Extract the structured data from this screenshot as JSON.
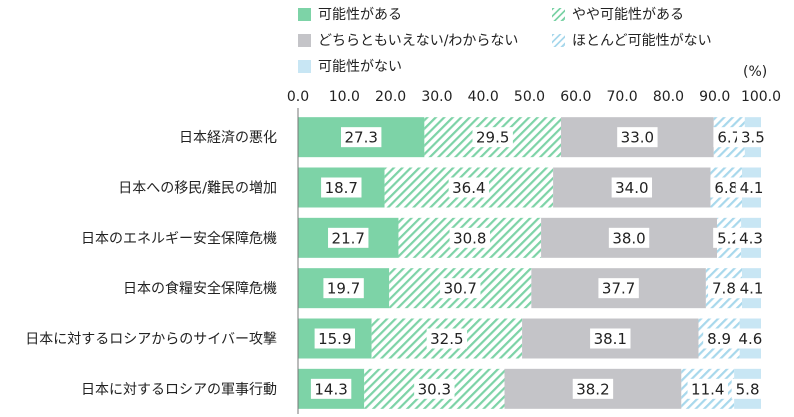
{
  "chart_data": {
    "type": "bar",
    "orientation": "horizontal",
    "stacked": true,
    "unit": "(%)",
    "xlim": [
      0,
      100
    ],
    "x_ticks": [
      "0.0",
      "10.0",
      "20.0",
      "30.0",
      "40.0",
      "50.0",
      "60.0",
      "70.0",
      "80.0",
      "90.0",
      "100.0"
    ],
    "categories": [
      "日本経済の悪化",
      "日本への移民/難民の増加",
      "日本のエネルギー安全保障危機",
      "日本の食糧安全保障危機",
      "日本に対するロシアからのサイバー攻撃",
      "日本に対するロシアの軍事行動"
    ],
    "series": [
      {
        "name": "可能性がある",
        "key": "possible",
        "color": "#7dd3a7",
        "pattern": "solid",
        "values": [
          27.3,
          18.7,
          21.7,
          19.7,
          15.9,
          14.3
        ]
      },
      {
        "name": "やや可能性がある",
        "key": "somewhat",
        "color": "#7dd3a7",
        "pattern": "hatch",
        "values": [
          29.5,
          36.4,
          30.8,
          30.7,
          32.5,
          30.3
        ]
      },
      {
        "name": "どちらともいえない/わからない",
        "key": "unknown",
        "color": "#c4c4c8",
        "pattern": "solid",
        "values": [
          33.0,
          34.0,
          38.0,
          37.7,
          38.1,
          38.2
        ]
      },
      {
        "name": "ほとんど可能性がない",
        "key": "hardly",
        "color": "#a8d8ec",
        "pattern": "hatch",
        "values": [
          6.7,
          6.8,
          5.2,
          7.8,
          8.9,
          11.4
        ]
      },
      {
        "name": "可能性がない",
        "key": "none",
        "color": "#c8e6f4",
        "pattern": "solid",
        "values": [
          3.5,
          4.1,
          4.3,
          4.1,
          4.6,
          5.8
        ]
      }
    ],
    "legend_position": "top"
  }
}
